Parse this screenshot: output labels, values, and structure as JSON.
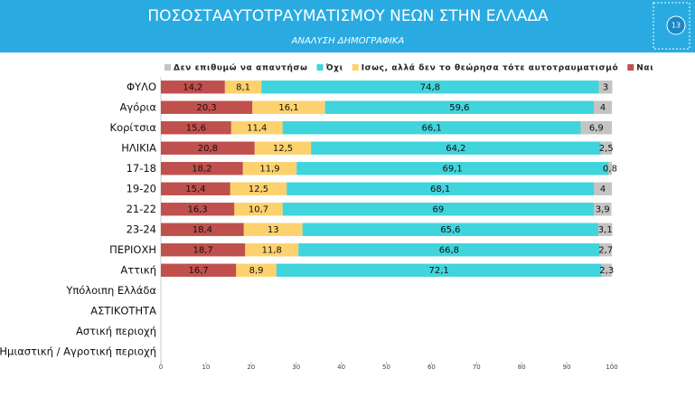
{
  "page_number": "13",
  "chart_data": {
    "type": "stacked-bar-horizontal",
    "title": "ΠΟΣΟΣΤΑΑΥΤΟΤΡΑΥΜΑΤΙΣΜΟΥ ΝΕΩΝ ΣΤΗΝ ΕΛΛΑΔΑ",
    "subtitle": "ΑΝΑΛΥΣΗ ΔΗΜΟΓΡΑΦΙΚΑ",
    "categories": [
      "ΦΥΛΟ",
      "Αγόρια",
      "Κορίτσια",
      "ΗΛΙΚΙΑ",
      "17-18",
      "19-20",
      "21-22",
      "23-24",
      "ΠΕΡΙΟΧΗ",
      "Αττική",
      "Υπόλοιπη Ελλάδα",
      "ΑΣΤΙΚΟΤΗΤΑ",
      "Αστική περιοχή",
      "Ημιαστική / Αγροτική περιοχή"
    ],
    "series": [
      {
        "name": "Ναι",
        "color": "#c0504d",
        "values": [
          14.2,
          20.3,
          15.6,
          20.8,
          18.2,
          15.4,
          16.3,
          18.4,
          18.7,
          16.7,
          null,
          null,
          null,
          null
        ],
        "value_labels": [
          "14,2",
          "20,3",
          "15,6",
          "20,8",
          "18,2",
          "15,4",
          "16,3",
          "18,4",
          "18,7",
          "16,7",
          null,
          null,
          null,
          null
        ]
      },
      {
        "name": "Ισως, αλλά δεν το θεώρησα τότε αυτοτραυματισμό",
        "color": "#fdd26e",
        "values": [
          8.1,
          16.1,
          11.4,
          12.5,
          11.9,
          12.5,
          10.7,
          13,
          11.8,
          8.9,
          null,
          null,
          null,
          null
        ],
        "value_labels": [
          "8,1",
          "16,1",
          "11,4",
          "12,5",
          "11,9",
          "12,5",
          "10,7",
          "13",
          "11,8",
          "8,9",
          null,
          null,
          null,
          null
        ]
      },
      {
        "name": "Όχι",
        "color": "#40d4dc",
        "values": [
          74.8,
          59.6,
          66.1,
          64.2,
          69.1,
          68.1,
          69,
          65.6,
          66.8,
          72.1,
          null,
          null,
          null,
          null
        ],
        "value_labels": [
          "74,8",
          "59,6",
          "66,1",
          "64,2",
          "69,1",
          "68,1",
          "69",
          "65,6",
          "66,8",
          "72,1",
          null,
          null,
          null,
          null
        ]
      },
      {
        "name": "Δεν επιθυμώ να απαντήσω",
        "color": "#c4c4c4",
        "values": [
          3,
          4,
          6.9,
          2.5,
          0.8,
          4,
          3.9,
          3.1,
          2.7,
          2.3,
          null,
          null,
          null,
          null
        ],
        "value_labels": [
          "3",
          "4",
          "6,9",
          "2,5",
          "0,8",
          "4",
          "3,9",
          "3,1",
          "2,7",
          "2,3",
          null,
          null,
          null,
          null
        ]
      }
    ],
    "xlim": [
      0,
      100
    ],
    "xticks": [
      0,
      10,
      20,
      30,
      40,
      50,
      60,
      70,
      80,
      90,
      100
    ]
  }
}
